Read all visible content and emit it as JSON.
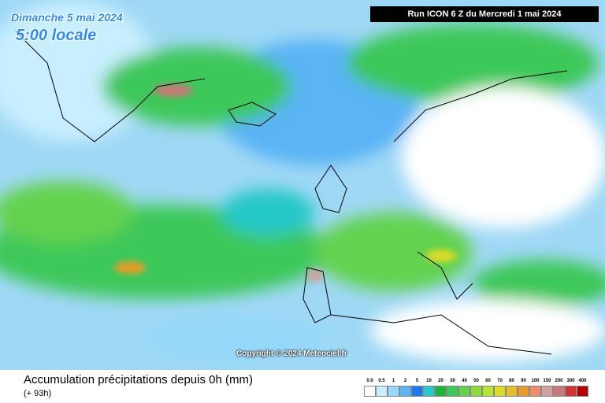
{
  "header": {
    "date": "Dimanche 5 mai 2024",
    "time": "5:00 locale",
    "run": "Run ICON 6 Z du Mercredi 1 mai 2024"
  },
  "copyright": "Copyright © 2024 Meteociel.fr",
  "footer": {
    "title": "Accumulation précipitations depuis 0h (mm)",
    "lead": "(+ 93h)"
  },
  "legend": {
    "labels": [
      "0.0",
      "0.5",
      "1",
      "2",
      "5",
      "10",
      "20",
      "30",
      "40",
      "50",
      "60",
      "70",
      "80",
      "90",
      "100",
      "150",
      "200",
      "300",
      "400"
    ],
    "colors": [
      "#ffffff",
      "#c8eeff",
      "#96d8fa",
      "#5ab4f5",
      "#1e78f0",
      "#28c8c8",
      "#1eb43c",
      "#3cc85a",
      "#64d250",
      "#8cdc3c",
      "#b4e632",
      "#dcdc28",
      "#e6be28",
      "#e69b28",
      "#f08c6e",
      "#d2a0a0",
      "#c87878",
      "#d23232",
      "#b40000"
    ]
  }
}
